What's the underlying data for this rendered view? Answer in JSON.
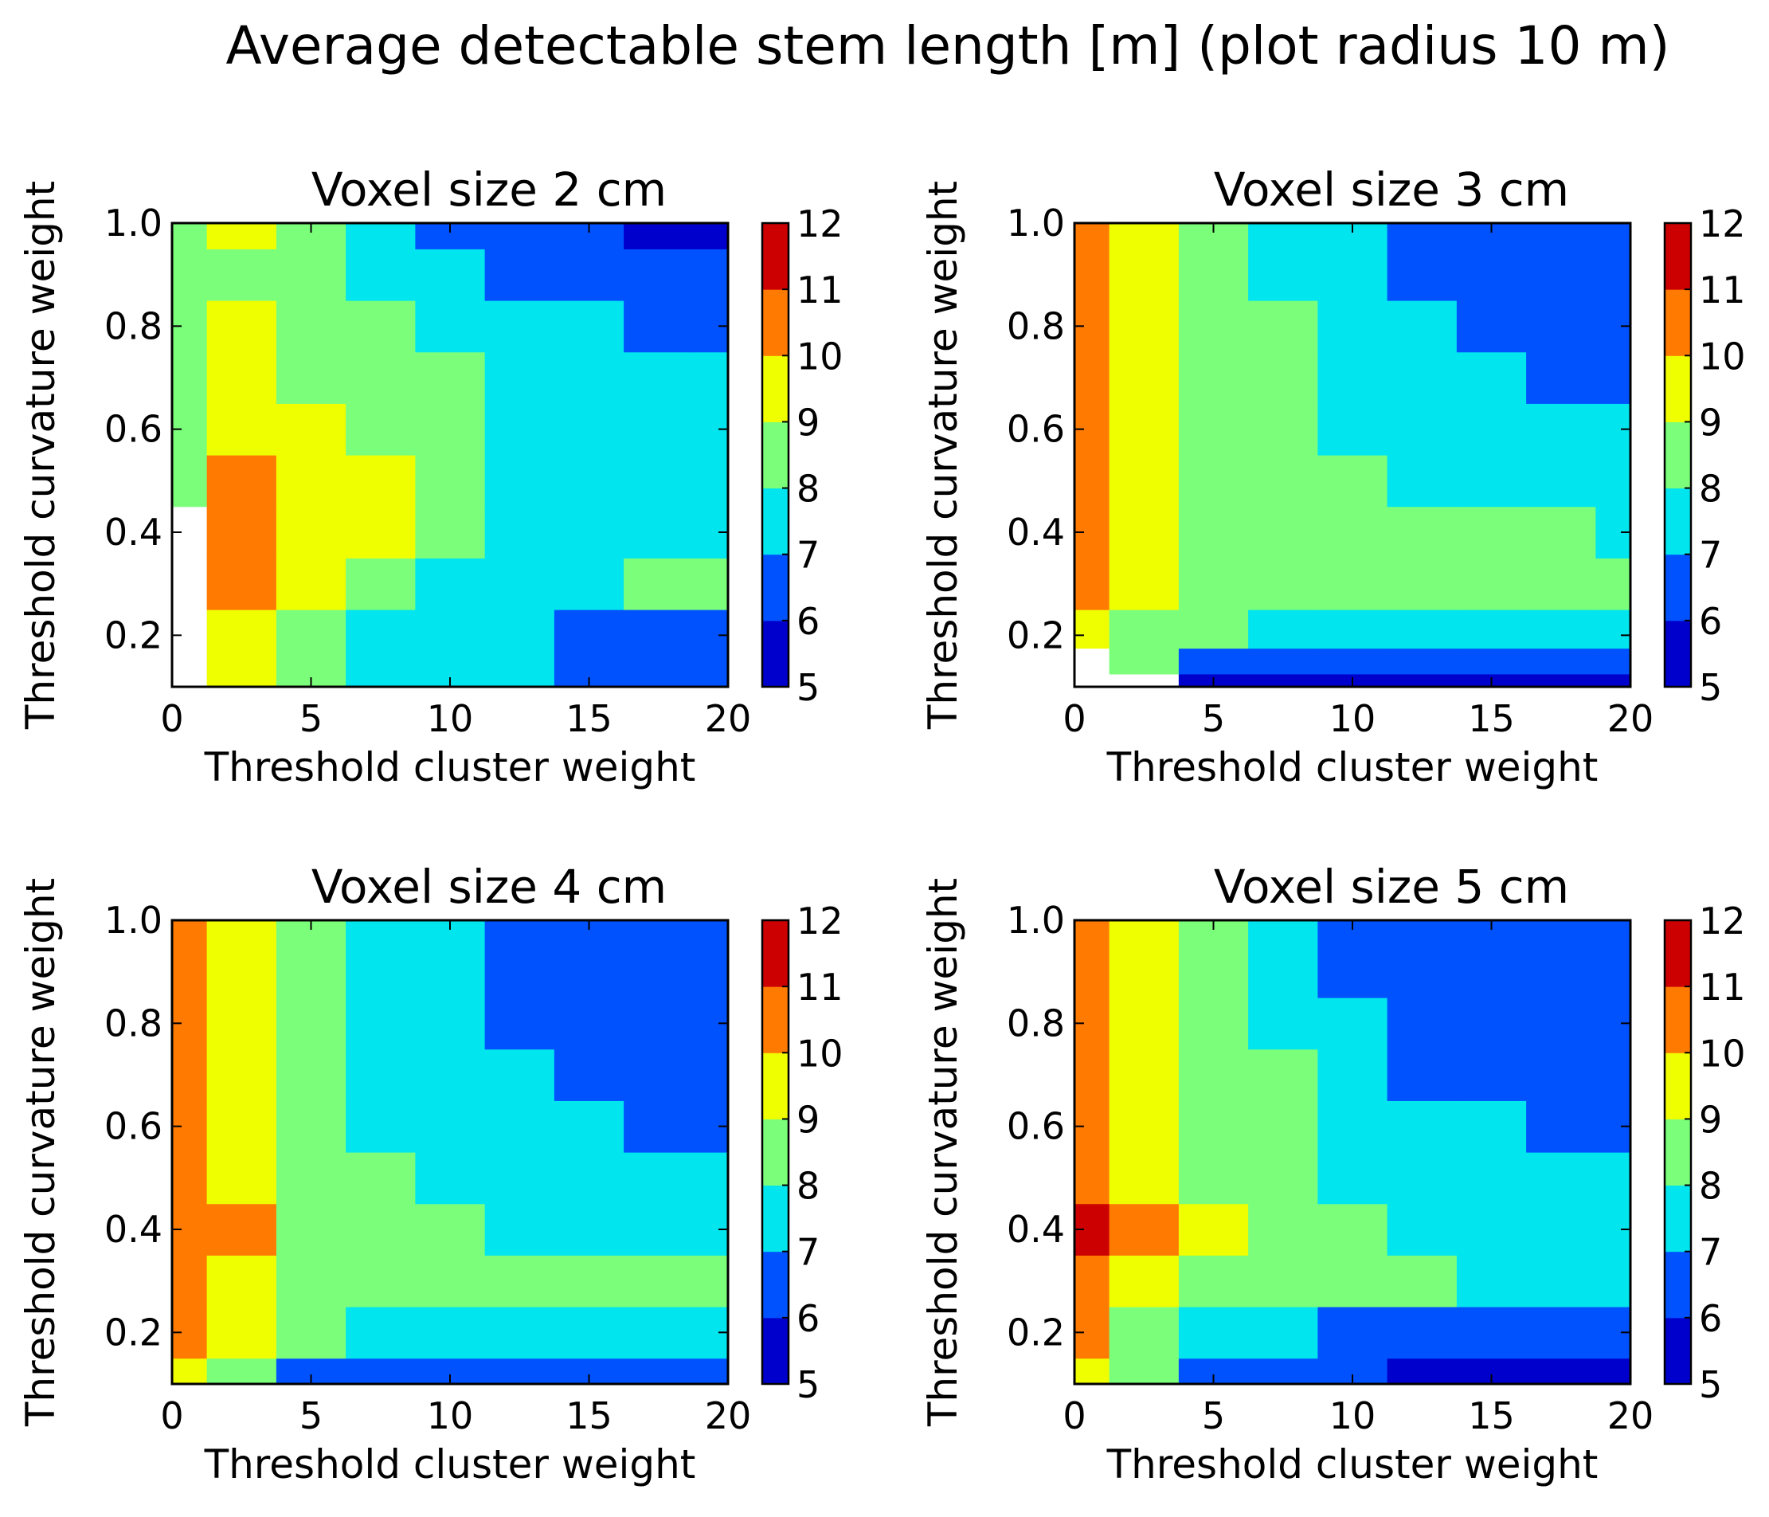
{
  "figure_title": "Average detectable stem length [m] (plot radius 10 m)",
  "colormap": {
    "levels": [
      5,
      6,
      7,
      8,
      9,
      10,
      11,
      12
    ],
    "colors": [
      "#0000cc",
      "#0052ff",
      "#00e5ee",
      "#7bff7b",
      "#f0ff00",
      "#ff7a00",
      "#cc0000"
    ]
  },
  "chart_data": [
    {
      "type": "heatmap",
      "title": "Voxel size 2 cm",
      "xlabel": "Threshold cluster weight",
      "ylabel": "Threshold curvature weight",
      "xlim": [
        0,
        20
      ],
      "ylim": [
        0.1,
        1.0
      ],
      "xticks": [
        "0",
        "5",
        "10",
        "15",
        "20"
      ],
      "yticks": [
        "0.2",
        "0.4",
        "0.6",
        "0.8",
        "1.0"
      ],
      "colorbar_ticks": [
        "5",
        "6",
        "7",
        "8",
        "9",
        "10",
        "11",
        "12"
      ],
      "x": [
        0,
        2.5,
        5,
        7.5,
        10,
        12.5,
        15,
        17.5,
        20
      ],
      "y": [
        0.2,
        0.3,
        0.4,
        0.5,
        0.6,
        0.7,
        0.8,
        0.9,
        1.0
      ],
      "z": [
        [
          null,
          9.3,
          8.2,
          7.4,
          7.3,
          7.2,
          6.8,
          6.5,
          6.4
        ],
        [
          null,
          10.5,
          9.3,
          8.6,
          7.8,
          7.7,
          7.6,
          8.1,
          8.1
        ],
        [
          null,
          10.6,
          9.6,
          9.1,
          8.5,
          7.9,
          7.5,
          7.5,
          7.4
        ],
        [
          8.8,
          10.1,
          9.4,
          9.0,
          8.4,
          7.9,
          7.5,
          7.4,
          7.3
        ],
        [
          8.7,
          9.6,
          9.1,
          8.6,
          8.2,
          7.9,
          7.6,
          7.4,
          7.3
        ],
        [
          8.5,
          9.3,
          8.8,
          8.4,
          8.1,
          7.8,
          7.4,
          7.2,
          7.0
        ],
        [
          8.3,
          9.2,
          8.6,
          8.1,
          7.6,
          7.3,
          7.0,
          6.8,
          6.6
        ],
        [
          8.2,
          8.8,
          8.3,
          7.7,
          7.2,
          6.8,
          6.6,
          6.5,
          6.3
        ],
        [
          8.3,
          9.1,
          8.2,
          7.4,
          6.9,
          6.4,
          6.2,
          5.9,
          5.8
        ]
      ]
    },
    {
      "type": "heatmap",
      "title": "Voxel size 3 cm",
      "xlabel": "Threshold cluster weight",
      "ylabel": "Threshold curvature weight",
      "xlim": [
        0,
        20
      ],
      "ylim": [
        0.1,
        1.0
      ],
      "xticks": [
        "0",
        "5",
        "10",
        "15",
        "20"
      ],
      "yticks": [
        "0.2",
        "0.4",
        "0.6",
        "0.8",
        "1.0"
      ],
      "colorbar_ticks": [
        "5",
        "6",
        "7",
        "8",
        "9",
        "10",
        "11",
        "12"
      ],
      "x": [
        0,
        2.5,
        5,
        7.5,
        10,
        12.5,
        15,
        17.5,
        20
      ],
      "y": [
        0.1,
        0.15,
        0.2,
        0.3,
        0.4,
        0.5,
        0.6,
        0.7,
        0.8,
        0.9,
        1.0
      ],
      "z": [
        [
          null,
          null,
          5.8,
          5.6,
          5.5,
          5.4,
          5.3,
          5.3,
          5.2
        ],
        [
          null,
          8.1,
          6.6,
          6.3,
          6.2,
          6.1,
          6.1,
          6.1,
          6.0
        ],
        [
          9.1,
          8.6,
          8.0,
          7.7,
          7.6,
          7.6,
          7.6,
          7.6,
          7.6
        ],
        [
          10.2,
          9.4,
          8.9,
          8.2,
          8.1,
          8.1,
          8.0,
          8.0,
          8.0
        ],
        [
          10.4,
          9.6,
          8.7,
          8.4,
          8.2,
          8.1,
          8.0,
          8.0,
          7.9
        ],
        [
          10.4,
          9.5,
          8.6,
          8.2,
          8.0,
          7.9,
          7.7,
          7.5,
          7.3
        ],
        [
          10.3,
          9.4,
          8.5,
          8.1,
          7.9,
          7.6,
          7.4,
          7.3,
          7.0
        ],
        [
          10.1,
          9.3,
          8.5,
          8.1,
          7.8,
          7.5,
          7.2,
          6.9,
          6.6
        ],
        [
          10.2,
          9.2,
          8.4,
          8.0,
          7.5,
          7.1,
          6.8,
          6.5,
          6.3
        ],
        [
          10.0,
          9.1,
          8.3,
          7.8,
          7.2,
          6.8,
          6.5,
          6.3,
          6.2
        ],
        [
          10.0,
          9.2,
          8.1,
          7.5,
          7.1,
          6.8,
          6.5,
          6.3,
          6.2
        ]
      ]
    },
    {
      "type": "heatmap",
      "title": "Voxel size 4 cm",
      "xlabel": "Threshold cluster weight",
      "ylabel": "Threshold curvature weight",
      "xlim": [
        0,
        20
      ],
      "ylim": [
        0.1,
        1.0
      ],
      "xticks": [
        "0",
        "5",
        "10",
        "15",
        "20"
      ],
      "yticks": [
        "0.2",
        "0.4",
        "0.6",
        "0.8",
        "1.0"
      ],
      "colorbar_ticks": [
        "5",
        "6",
        "7",
        "8",
        "9",
        "10",
        "11",
        "12"
      ],
      "x": [
        0,
        2.5,
        5,
        7.5,
        10,
        12.5,
        15,
        17.5,
        20
      ],
      "y": [
        0.1,
        0.2,
        0.3,
        0.4,
        0.5,
        0.6,
        0.7,
        0.8,
        0.9,
        1.0
      ],
      "z": [
        [
          9.6,
          8.0,
          6.9,
          6.3,
          6.2,
          6.2,
          6.2,
          6.2,
          6.2
        ],
        [
          10.3,
          9.1,
          8.1,
          7.6,
          7.3,
          7.1,
          7.0,
          7.0,
          7.0
        ],
        [
          10.6,
          9.6,
          8.6,
          8.3,
          8.1,
          8.1,
          8.0,
          8.0,
          8.0
        ],
        [
          10.7,
          10.1,
          8.9,
          8.3,
          8.1,
          7.9,
          7.8,
          7.7,
          7.6
        ],
        [
          10.7,
          9.7,
          8.7,
          8.3,
          7.9,
          7.6,
          7.4,
          7.2,
          7.1
        ],
        [
          10.6,
          9.6,
          8.5,
          7.9,
          7.4,
          7.2,
          7.0,
          6.9,
          6.8
        ],
        [
          10.6,
          9.5,
          8.4,
          7.8,
          7.2,
          7.0,
          6.8,
          6.7,
          6.7
        ],
        [
          10.7,
          9.4,
          8.5,
          7.7,
          7.1,
          6.7,
          6.5,
          6.4,
          6.3
        ],
        [
          10.7,
          9.5,
          8.6,
          7.8,
          7.2,
          6.6,
          6.4,
          6.3,
          6.2
        ],
        [
          10.6,
          9.8,
          8.8,
          7.9,
          7.4,
          6.8,
          6.4,
          6.3,
          6.2
        ]
      ]
    },
    {
      "type": "heatmap",
      "title": "Voxel size 5 cm",
      "xlabel": "Threshold cluster weight",
      "ylabel": "Threshold curvature weight",
      "xlim": [
        0,
        20
      ],
      "ylim": [
        0.1,
        1.0
      ],
      "xticks": [
        "0",
        "5",
        "10",
        "15",
        "20"
      ],
      "yticks": [
        "0.2",
        "0.4",
        "0.6",
        "0.8",
        "1.0"
      ],
      "colorbar_ticks": [
        "5",
        "6",
        "7",
        "8",
        "9",
        "10",
        "11",
        "12"
      ],
      "x": [
        0,
        2.5,
        5,
        7.5,
        10,
        12.5,
        15,
        17.5,
        20
      ],
      "y": [
        0.1,
        0.2,
        0.3,
        0.4,
        0.5,
        0.6,
        0.7,
        0.8,
        0.9,
        1.0
      ],
      "z": [
        [
          9.7,
          8.0,
          6.3,
          6.1,
          6.0,
          5.9,
          5.8,
          5.7,
          5.7
        ],
        [
          10.4,
          8.7,
          7.6,
          7.1,
          6.9,
          6.8,
          6.7,
          6.7,
          6.6
        ],
        [
          10.8,
          9.5,
          8.7,
          8.4,
          8.1,
          8.0,
          7.9,
          7.8,
          7.8
        ],
        [
          11.0,
          10.0,
          9.1,
          8.6,
          8.2,
          7.9,
          7.6,
          7.5,
          7.4
        ],
        [
          10.9,
          9.8,
          8.8,
          8.3,
          7.9,
          7.6,
          7.4,
          7.3,
          7.2
        ],
        [
          10.7,
          9.6,
          8.6,
          8.1,
          7.7,
          7.3,
          7.0,
          6.9,
          6.8
        ],
        [
          10.7,
          9.4,
          8.5,
          8.0,
          7.3,
          6.8,
          6.6,
          6.9,
          6.8
        ],
        [
          10.6,
          9.3,
          8.4,
          7.7,
          7.0,
          6.6,
          6.4,
          6.3,
          6.2
        ],
        [
          10.6,
          9.5,
          8.4,
          7.4,
          6.8,
          6.4,
          6.3,
          6.2,
          6.1
        ],
        [
          10.6,
          9.6,
          8.4,
          7.3,
          6.6,
          6.3,
          6.2,
          6.1,
          6.0
        ]
      ]
    }
  ]
}
